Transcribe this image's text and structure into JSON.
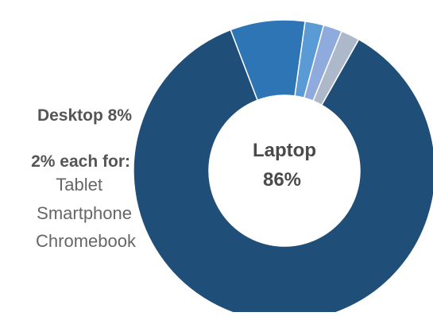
{
  "chart_data": {
    "type": "pie",
    "style": "donut",
    "categories": [
      "Laptop",
      "Desktop",
      "Tablet",
      "Smartphone",
      "Chromebook"
    ],
    "values": [
      86,
      8,
      2,
      2,
      2
    ],
    "unit": "%",
    "colors": [
      "#1f4e79",
      "#2e75b6",
      "#5b9bd5",
      "#8faadc",
      "#adb9ca"
    ],
    "slice_separator_color": "#ffffff",
    "center_label": {
      "name": "Laptop",
      "value": "86%"
    },
    "outside_labels": {
      "desktop": "Desktop 8%",
      "group_header": "2% each for:",
      "group_items": [
        "Tablet",
        "Smartphone",
        "Chromebook"
      ]
    }
  }
}
